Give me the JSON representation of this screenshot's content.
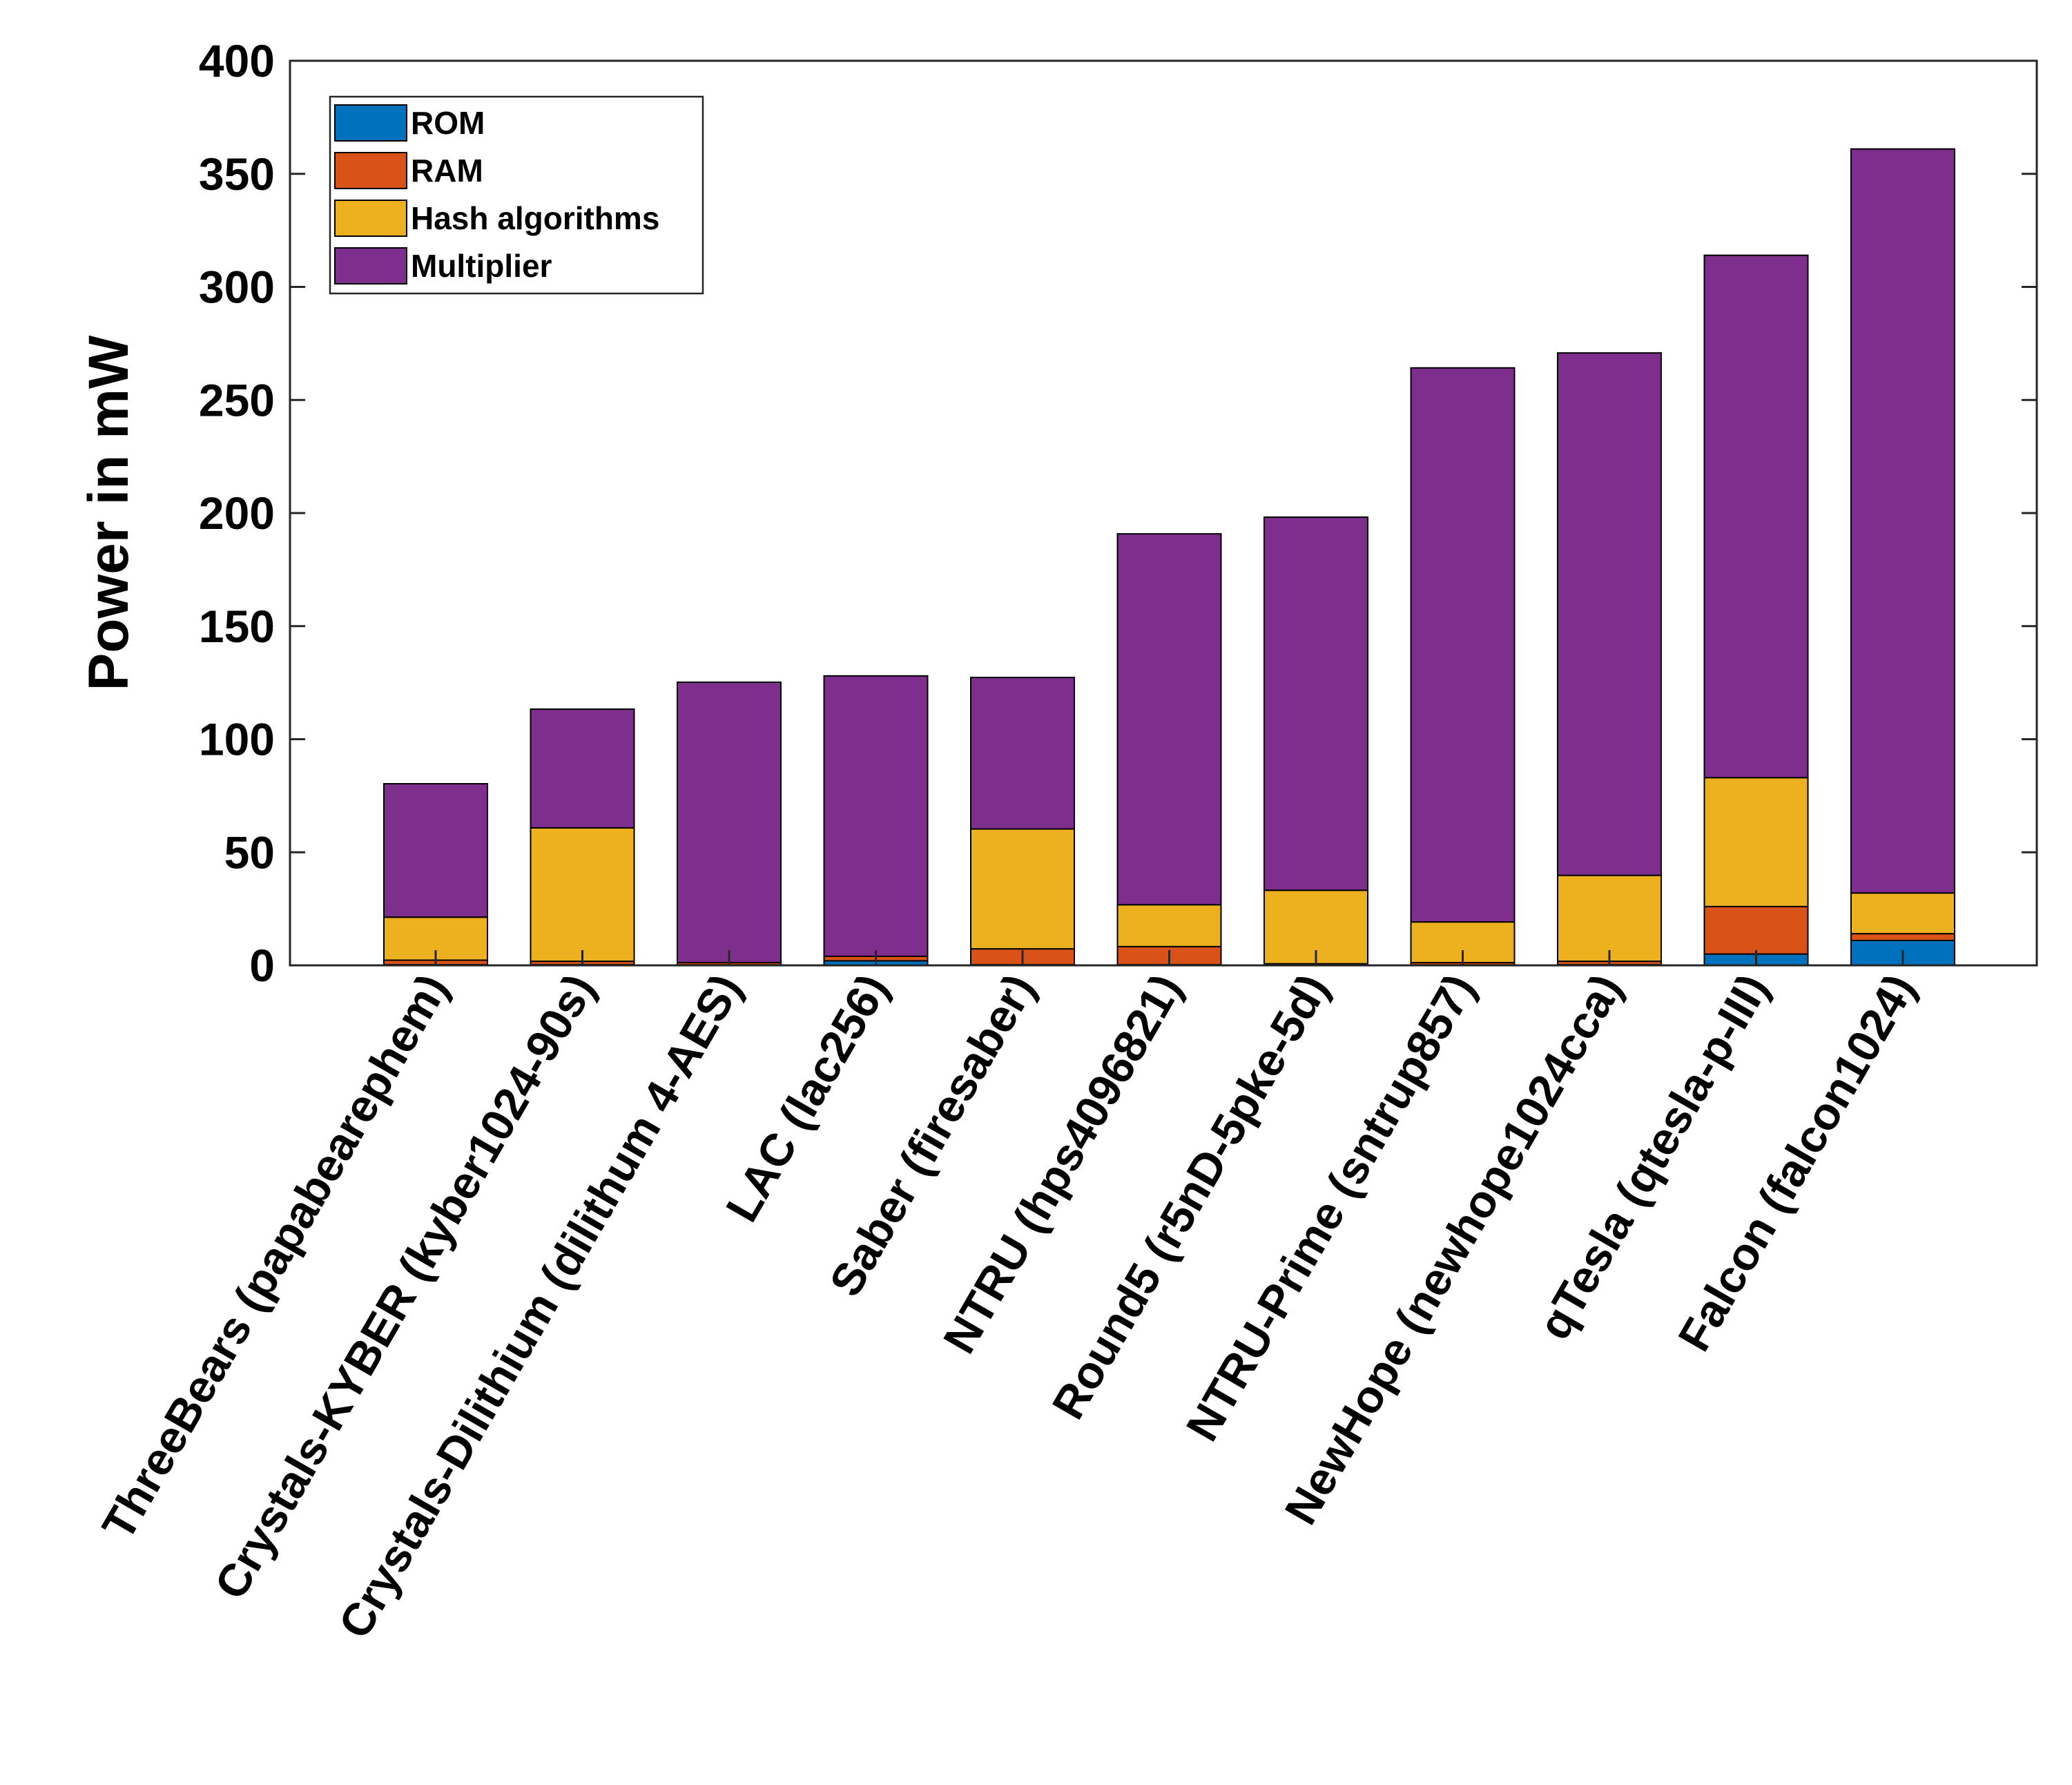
{
  "chart_data": {
    "type": "bar",
    "stacked": true,
    "title": "",
    "xlabel": "",
    "ylabel": "Power in mW",
    "ylim": [
      0,
      400
    ],
    "yticks": [
      0,
      50,
      100,
      150,
      200,
      250,
      300,
      350,
      400
    ],
    "grid": false,
    "legend_position": "top-left",
    "categories": [
      "ThreeBears (papabearephem)",
      "Crystals-KYBER (kyber1024-90s)",
      "Crystals-Dilithium (dilithum 4-AES)",
      "LAC (lac256)",
      "Saber (firesaber)",
      "NTRU (hps4096821)",
      "Round5 (r5nD-5pke-5d)",
      "NTRU-Prime (sntrup857)",
      "NewHope (newhope1024cca)",
      "qTesla (qtesla-p-III)",
      "Falcon (falcon1024)"
    ],
    "series": [
      {
        "name": "ROM",
        "color": "#0072BD",
        "values": [
          0.3,
          0.3,
          0.2,
          2,
          0.3,
          0.3,
          0.2,
          0.2,
          0.3,
          5,
          11
        ]
      },
      {
        "name": "RAM",
        "color": "#D95319",
        "values": [
          2,
          1.5,
          1,
          2,
          7,
          8,
          0.5,
          1,
          1.5,
          21,
          3
        ]
      },
      {
        "name": "Hash algorithms",
        "color": "#EDB120",
        "values": [
          19,
          59,
          0,
          0,
          53,
          18.5,
          32.5,
          18,
          38,
          57,
          18
        ]
      },
      {
        "name": "Multiplier",
        "color": "#7E2F8E",
        "values": [
          59,
          52.5,
          124,
          124,
          67,
          164,
          165,
          245,
          231,
          231,
          329
        ]
      }
    ]
  }
}
